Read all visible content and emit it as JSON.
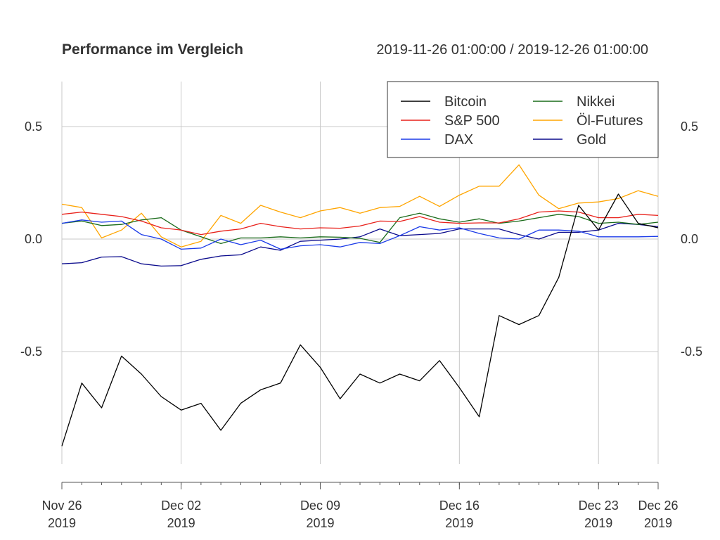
{
  "chart_data": {
    "type": "line",
    "title": "Performance im Vergleich",
    "subtitle": "2019-11-26 01:00:00 / 2019-12-26 01:00:00",
    "xlabel": "",
    "ylabel": "",
    "ylim": [
      -1.0,
      0.7
    ],
    "y_ticks": [
      "0.5",
      "0.0",
      "-0.5"
    ],
    "y_tick_values": [
      0.5,
      0.0,
      -0.5
    ],
    "x_ticks": [
      {
        "date": "2019-11-26",
        "label1": "Nov 26",
        "label2": "2019"
      },
      {
        "date": "2019-12-02",
        "label1": "Dec 02",
        "label2": "2019"
      },
      {
        "date": "2019-12-09",
        "label1": "Dec 09",
        "label2": "2019"
      },
      {
        "date": "2019-12-16",
        "label1": "Dec 16",
        "label2": "2019"
      },
      {
        "date": "2019-12-23",
        "label1": "Dec 23",
        "label2": "2019"
      },
      {
        "date": "2019-12-26",
        "label1": "Dec 26",
        "label2": "2019"
      }
    ],
    "grid": true,
    "legend_position": "top-right",
    "x": [
      "2019-11-26",
      "2019-11-27",
      "2019-11-28",
      "2019-11-29",
      "2019-11-30",
      "2019-12-01",
      "2019-12-02",
      "2019-12-03",
      "2019-12-04",
      "2019-12-05",
      "2019-12-06",
      "2019-12-07",
      "2019-12-08",
      "2019-12-09",
      "2019-12-10",
      "2019-12-11",
      "2019-12-12",
      "2019-12-13",
      "2019-12-14",
      "2019-12-15",
      "2019-12-16",
      "2019-12-17",
      "2019-12-18",
      "2019-12-19",
      "2019-12-20",
      "2019-12-21",
      "2019-12-22",
      "2019-12-23",
      "2019-12-24",
      "2019-12-25",
      "2019-12-26"
    ],
    "series": [
      {
        "name": "Bitcoin",
        "color": "#000000",
        "values": [
          -0.92,
          -0.64,
          -0.75,
          -0.52,
          -0.6,
          -0.7,
          -0.76,
          -0.73,
          -0.85,
          -0.73,
          -0.67,
          -0.64,
          -0.47,
          -0.57,
          -0.71,
          -0.6,
          -0.64,
          -0.6,
          -0.63,
          -0.54,
          -0.66,
          -0.79,
          -0.34,
          -0.38,
          -0.34,
          -0.17,
          0.15,
          0.04,
          0.2,
          0.07,
          0.05
        ]
      },
      {
        "name": "S&P 500",
        "color": "#e8201a",
        "values": [
          0.11,
          0.12,
          0.11,
          0.1,
          0.08,
          0.05,
          0.04,
          0.02,
          0.035,
          0.045,
          0.07,
          0.055,
          0.045,
          0.05,
          0.048,
          0.058,
          0.08,
          0.078,
          0.1,
          0.075,
          0.07,
          0.072,
          0.072,
          0.09,
          0.12,
          0.125,
          0.12,
          0.095,
          0.095,
          0.11,
          0.105
        ]
      },
      {
        "name": "DAX",
        "color": "#1a3ae8",
        "values": [
          0.07,
          0.085,
          0.075,
          0.08,
          0.02,
          0.0,
          -0.045,
          -0.04,
          0.0,
          -0.025,
          -0.005,
          -0.045,
          -0.03,
          -0.025,
          -0.035,
          -0.015,
          -0.02,
          0.015,
          0.055,
          0.04,
          0.05,
          0.025,
          0.005,
          0.0,
          0.04,
          0.04,
          0.035,
          0.01,
          0.01,
          0.01,
          0.012
        ]
      },
      {
        "name": "Nikkei",
        "color": "#1a6b1a",
        "values": [
          0.07,
          0.08,
          0.06,
          0.065,
          0.085,
          0.095,
          0.04,
          0.01,
          -0.02,
          0.005,
          0.005,
          0.01,
          0.005,
          0.01,
          0.008,
          0.003,
          -0.015,
          0.095,
          0.115,
          0.09,
          0.075,
          0.09,
          0.07,
          0.08,
          0.095,
          0.11,
          0.1,
          0.07,
          0.075,
          0.065,
          0.075
        ]
      },
      {
        "name": "Öl-Futures",
        "color": "#ffa500",
        "values": [
          0.155,
          0.14,
          0.005,
          0.04,
          0.115,
          0.01,
          -0.035,
          -0.01,
          0.105,
          0.07,
          0.15,
          0.12,
          0.095,
          0.125,
          0.14,
          0.115,
          0.14,
          0.145,
          0.19,
          0.145,
          0.195,
          0.235,
          0.235,
          0.33,
          0.195,
          0.135,
          0.16,
          0.165,
          0.18,
          0.215,
          0.19
        ]
      },
      {
        "name": "Gold",
        "color": "#0a0a8c",
        "values": [
          -0.11,
          -0.105,
          -0.08,
          -0.078,
          -0.11,
          -0.12,
          -0.118,
          -0.09,
          -0.075,
          -0.07,
          -0.035,
          -0.05,
          -0.01,
          -0.005,
          0.0,
          0.01,
          0.045,
          0.015,
          0.02,
          0.025,
          0.045,
          0.045,
          0.045,
          0.02,
          0.0,
          0.03,
          0.03,
          0.04,
          0.07,
          0.065,
          0.055
        ]
      }
    ]
  }
}
